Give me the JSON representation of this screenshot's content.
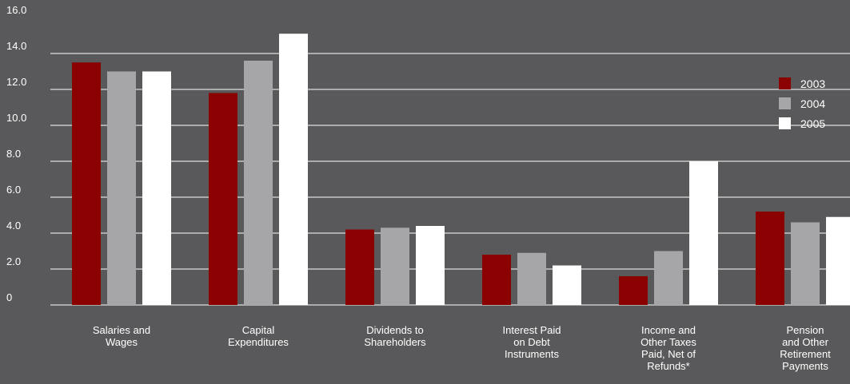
{
  "chart_data": {
    "type": "bar",
    "categories": [
      [
        "Salaries and",
        "Wages"
      ],
      [
        "Capital",
        "Expenditures"
      ],
      [
        "Dividends to",
        "Shareholders"
      ],
      [
        "Interest Paid",
        "on Debt",
        "Instruments"
      ],
      [
        "Income and",
        "Other Taxes",
        "Paid, Net of",
        "Refunds*"
      ],
      [
        "Pension",
        "and Other",
        "Retirement",
        "Payments"
      ]
    ],
    "series": [
      {
        "name": "2003",
        "color": "#8b0000",
        "values": [
          13.5,
          11.8,
          4.2,
          2.8,
          1.6,
          5.2
        ]
      },
      {
        "name": "2004",
        "color": "#a6a6a8",
        "values": [
          13.0,
          13.6,
          4.3,
          2.9,
          3.0,
          4.6
        ]
      },
      {
        "name": "2005",
        "color": "#ffffff",
        "values": [
          13.0,
          15.1,
          4.4,
          2.2,
          8.0,
          4.9
        ]
      }
    ],
    "ylim": [
      0,
      16
    ],
    "yticks": [
      "0",
      "2.0",
      "4.0",
      "6.0",
      "8.0",
      "10.0",
      "12.0",
      "14.0",
      "16.0"
    ],
    "ytick_values": [
      0,
      2,
      4,
      6,
      8,
      10,
      12,
      14,
      16
    ],
    "legend_position": "right",
    "grid": true,
    "gridline_color": "#ffffff"
  }
}
